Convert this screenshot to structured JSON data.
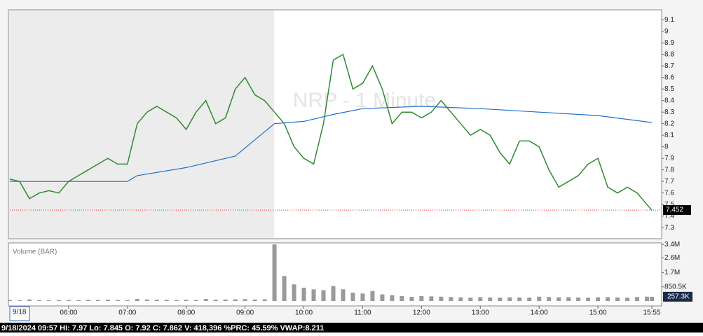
{
  "chart_data": [
    {
      "type": "line",
      "watermark": "NRP - 1 Minute",
      "date_label": "9/18",
      "xlim": [
        300,
        965
      ],
      "ylim": [
        7.21,
        9.18
      ],
      "xticks": [
        {
          "value": 360,
          "label": "06:00"
        },
        {
          "value": 420,
          "label": "07:00"
        },
        {
          "value": 480,
          "label": "08:00"
        },
        {
          "value": 540,
          "label": "09:00"
        },
        {
          "value": 600,
          "label": "10:00"
        },
        {
          "value": 660,
          "label": "11:00"
        },
        {
          "value": 720,
          "label": "12:00"
        },
        {
          "value": 780,
          "label": "13:00"
        },
        {
          "value": 840,
          "label": "14:00"
        },
        {
          "value": 900,
          "label": "15:00"
        },
        {
          "value": 955,
          "label": "15:55"
        }
      ],
      "yticks": [
        7.3,
        7.4,
        7.5,
        7.6,
        7.7,
        7.8,
        7.9,
        8,
        8.1,
        8.2,
        8.3,
        8.4,
        8.5,
        8.6,
        8.7,
        8.8,
        8.9,
        9,
        9.1
      ],
      "last_price": 7.452,
      "series": [
        {
          "color": "#2f8a2f",
          "x": [
            300,
            310,
            320,
            330,
            340,
            350,
            360,
            370,
            380,
            390,
            400,
            410,
            420,
            430,
            440,
            450,
            460,
            470,
            480,
            490,
            500,
            510,
            520,
            530,
            540,
            550,
            560,
            570,
            580,
            590,
            600,
            610,
            620,
            630,
            640,
            650,
            660,
            670,
            680,
            690,
            700,
            710,
            720,
            730,
            740,
            750,
            760,
            770,
            780,
            790,
            800,
            810,
            820,
            830,
            840,
            850,
            860,
            870,
            880,
            890,
            900,
            910,
            920,
            930,
            940,
            950,
            955
          ],
          "values": [
            7.72,
            7.7,
            7.55,
            7.6,
            7.62,
            7.6,
            7.7,
            7.75,
            7.8,
            7.85,
            7.9,
            7.85,
            7.85,
            8.2,
            8.3,
            8.35,
            8.3,
            8.25,
            8.15,
            8.3,
            8.4,
            8.2,
            8.25,
            8.5,
            8.6,
            8.45,
            8.4,
            8.3,
            8.2,
            8.0,
            7.9,
            7.85,
            8.2,
            8.75,
            8.8,
            8.5,
            8.55,
            8.7,
            8.5,
            8.2,
            8.3,
            8.3,
            8.25,
            8.3,
            8.4,
            8.3,
            8.2,
            8.1,
            8.15,
            8.1,
            7.95,
            7.85,
            8.05,
            8.05,
            8.0,
            7.8,
            7.65,
            7.7,
            7.75,
            7.85,
            7.9,
            7.65,
            7.6,
            7.65,
            7.6,
            7.5,
            7.45
          ]
        },
        {
          "color": "#1f6fd0",
          "x": [
            300,
            420,
            430,
            480,
            530,
            570,
            600,
            630,
            660,
            720,
            780,
            840,
            900,
            955
          ],
          "values": [
            7.7,
            7.7,
            7.75,
            7.82,
            7.92,
            8.2,
            8.22,
            8.28,
            8.33,
            8.35,
            8.33,
            8.3,
            8.27,
            8.21
          ]
        }
      ]
    },
    {
      "type": "bar",
      "title": "Volume (BAR)",
      "color": "#9a9a9a",
      "xlim": [
        300,
        965
      ],
      "ylim": [
        0,
        3450000
      ],
      "yticks": [
        {
          "value": 850500,
          "label": "850.5K"
        },
        {
          "value": 1700000,
          "label": "1.7M"
        },
        {
          "value": 2600000,
          "label": "2.6M"
        },
        {
          "value": 3400000,
          "label": "3.4M"
        }
      ],
      "last_value": {
        "value": 257300,
        "label": "257.3K"
      },
      "x": [
        300,
        310,
        320,
        330,
        340,
        350,
        360,
        370,
        380,
        390,
        400,
        410,
        420,
        430,
        440,
        450,
        460,
        470,
        480,
        490,
        500,
        510,
        520,
        530,
        540,
        550,
        560,
        570,
        580,
        590,
        600,
        610,
        620,
        630,
        640,
        650,
        660,
        670,
        680,
        690,
        700,
        710,
        720,
        730,
        740,
        750,
        760,
        770,
        780,
        790,
        800,
        810,
        820,
        830,
        840,
        850,
        860,
        870,
        880,
        890,
        900,
        910,
        920,
        930,
        940,
        950,
        955
      ],
      "values": [
        60000,
        40000,
        90000,
        50000,
        40000,
        50000,
        60000,
        50000,
        70000,
        60000,
        80000,
        60000,
        50000,
        120000,
        90000,
        80000,
        70000,
        60000,
        70000,
        60000,
        120000,
        80000,
        90000,
        100000,
        110000,
        90000,
        100000,
        3400000,
        1500000,
        1000000,
        800000,
        700000,
        650000,
        900000,
        700000,
        500000,
        450000,
        600000,
        400000,
        350000,
        300000,
        250000,
        300000,
        280000,
        260000,
        240000,
        220000,
        200000,
        230000,
        210000,
        200000,
        220000,
        210000,
        200000,
        260000,
        240000,
        220000,
        230000,
        210000,
        200000,
        220000,
        230000,
        210000,
        200000,
        240000,
        260000,
        257300
      ]
    }
  ],
  "status_bar": "9/18/2024 09:57  Hi: 7.97  Lo: 7.845  O: 7.92  C: 7.862  V: 418,396 %PRC: 45.59% VWAP:8.211"
}
